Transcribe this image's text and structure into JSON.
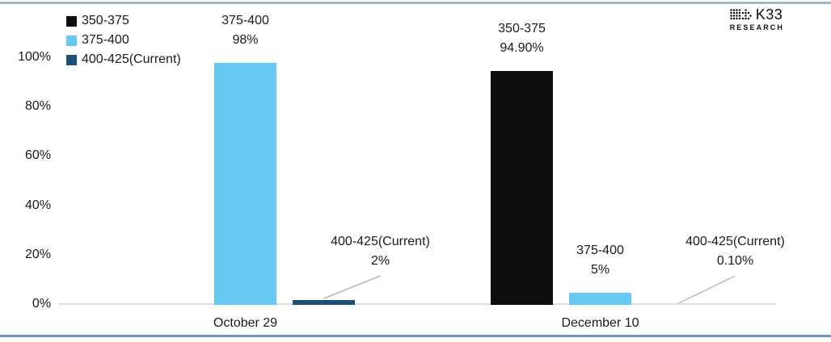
{
  "logo": {
    "brand": "K33",
    "sub": "RESEARCH"
  },
  "colors": {
    "top_rule": "#9fb6cc",
    "bottom_rule": "#6e95b9",
    "baseline": "#dedede",
    "leader_line": "#b8b8b8",
    "text": "#1a1a1a",
    "black_series": "#0e0e0e",
    "lightblue_series": "#66c9f1",
    "navy_series": "#1f4e74"
  },
  "chart_data": {
    "type": "bar",
    "title": "",
    "categories": [
      "October 29",
      "December 10"
    ],
    "series": [
      {
        "name": "350-375",
        "color": "#0e0e0e",
        "values": [
          0,
          94.9
        ]
      },
      {
        "name": "375-400",
        "color": "#66c9f1",
        "values": [
          98,
          5
        ]
      },
      {
        "name": "400-425(Current)",
        "color": "#1f4e74",
        "values": [
          2,
          0.1
        ]
      }
    ],
    "annotations": [
      {
        "category": "October 29",
        "series": "375-400",
        "value_label": "98%",
        "style": "above"
      },
      {
        "category": "October 29",
        "series": "400-425(Current)",
        "value_label": "2%",
        "style": "callout"
      },
      {
        "category": "December 10",
        "series": "350-375",
        "value_label": "94.90%",
        "style": "above"
      },
      {
        "category": "December 10",
        "series": "375-400",
        "value_label": "5%",
        "style": "above"
      },
      {
        "category": "December 10",
        "series": "400-425(Current)",
        "value_label": "0.10%",
        "style": "callout"
      }
    ],
    "y_axis": {
      "ticks": [
        "100%",
        "80%",
        "60%",
        "40%",
        "20%",
        "0%"
      ],
      "range": [
        0,
        100
      ],
      "grid": false
    },
    "legend": {
      "position": "top-left",
      "items": [
        "350-375",
        "375-400",
        "400-425(Current)"
      ]
    }
  }
}
